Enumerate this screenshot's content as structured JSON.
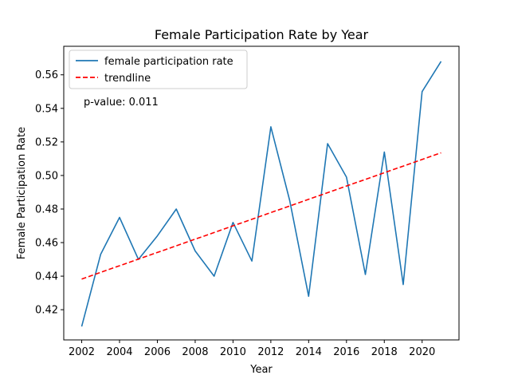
{
  "chart_data": {
    "type": "line",
    "title": "Female Participation Rate by Year",
    "xlabel": "Year",
    "ylabel": "Female Participation Rate",
    "xlim": [
      2001.05,
      2021.95
    ],
    "ylim": [
      0.402,
      0.577
    ],
    "x_ticks": [
      2002,
      2004,
      2006,
      2008,
      2010,
      2012,
      2014,
      2016,
      2018,
      2020
    ],
    "y_ticks": [
      0.42,
      0.44,
      0.46,
      0.48,
      0.5,
      0.52,
      0.54,
      0.56
    ],
    "y_tick_labels": [
      "0.42",
      "0.44",
      "0.46",
      "0.48",
      "0.50",
      "0.52",
      "0.54",
      "0.56"
    ],
    "grid": false,
    "legend_position": "top-left",
    "annotation": "p-value: 0.011",
    "series": [
      {
        "name": "female participation rate",
        "color": "#1f77b4",
        "style": "solid",
        "x": [
          2002,
          2003,
          2004,
          2005,
          2006,
          2007,
          2008,
          2009,
          2010,
          2011,
          2012,
          2013,
          2014,
          2015,
          2016,
          2017,
          2018,
          2019,
          2020,
          2021
        ],
        "values": [
          0.41,
          0.453,
          0.475,
          0.45,
          0.464,
          0.48,
          0.455,
          0.44,
          0.472,
          0.449,
          0.529,
          0.485,
          0.428,
          0.519,
          0.499,
          0.441,
          0.514,
          0.435,
          0.55,
          0.568
        ]
      },
      {
        "name": "trendline",
        "color": "#ff0000",
        "style": "dashed",
        "x": [
          2002,
          2021
        ],
        "values": [
          0.4383,
          0.5135
        ]
      }
    ]
  }
}
